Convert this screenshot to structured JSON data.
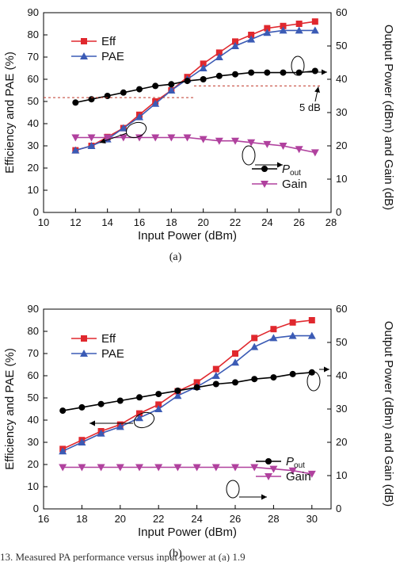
{
  "chart_data": [
    {
      "type": "line",
      "subcaption": "(a)",
      "xlabel": "Input Power (dBm)",
      "ylabel_left": "Efficiency and PAE (%)",
      "ylabel_right": "Output Power (dBm) and Gain (dB)",
      "xlim": [
        10,
        28
      ],
      "ylim_left": [
        0,
        90
      ],
      "ylim_right": [
        0,
        60
      ],
      "xticks": [
        "10",
        "12",
        "14",
        "16",
        "18",
        "20",
        "22",
        "24",
        "26",
        "28"
      ],
      "yticks_left": [
        "0",
        "10",
        "20",
        "30",
        "40",
        "50",
        "60",
        "70",
        "80",
        "90"
      ],
      "yticks_right": [
        "0",
        "10",
        "20",
        "30",
        "40",
        "50",
        "60"
      ],
      "annotation": "5 dB",
      "series": [
        {
          "name": "Eff",
          "axis": "left",
          "color": "#e0282e",
          "marker": "square",
          "x": [
            12,
            13,
            14,
            15,
            16,
            17,
            18,
            19,
            20,
            21,
            22,
            23,
            24,
            25,
            26,
            27
          ],
          "y": [
            28,
            30,
            34,
            38,
            44,
            50,
            55,
            61,
            67,
            72,
            77,
            80,
            83,
            84,
            85,
            86
          ]
        },
        {
          "name": "PAE",
          "axis": "left",
          "color": "#3b5bb5",
          "marker": "triangle-up",
          "x": [
            12,
            13,
            14,
            15,
            16,
            17,
            18,
            19,
            20,
            21,
            22,
            23,
            24,
            25,
            26,
            27
          ],
          "y": [
            28,
            30,
            33,
            38,
            43,
            49,
            55,
            60,
            65,
            70,
            75,
            78,
            81,
            82,
            82,
            82
          ]
        },
        {
          "name": "P_out",
          "label_main": "P",
          "label_sub": "out",
          "axis": "right",
          "color": "#000000",
          "marker": "circle",
          "x": [
            12,
            13,
            14,
            15,
            16,
            17,
            18,
            19,
            20,
            21,
            22,
            23,
            24,
            25,
            26,
            27
          ],
          "y": [
            33,
            34,
            35,
            36,
            37,
            38,
            38.5,
            39.5,
            40,
            41,
            41.5,
            42,
            42,
            42,
            42,
            42.5
          ]
        },
        {
          "name": "Gain",
          "axis": "right",
          "color": "#b0419e",
          "marker": "triangle-down",
          "x": [
            12,
            13,
            14,
            15,
            16,
            17,
            18,
            19,
            20,
            21,
            22,
            23,
            24,
            25,
            26,
            27
          ],
          "y": [
            22.5,
            22.5,
            22.5,
            22.5,
            22.5,
            22.5,
            22.5,
            22.5,
            22,
            21.5,
            21.5,
            21,
            20.5,
            20,
            19,
            18
          ]
        }
      ]
    },
    {
      "type": "line",
      "subcaption": "(b)",
      "xlabel": "Input Power (dBm)",
      "ylabel_left": "Efficiency and PAE (%)",
      "ylabel_right": "Output Power (dBm) and Gain (dB)",
      "xlim": [
        16,
        31
      ],
      "ylim_left": [
        0,
        90
      ],
      "ylim_right": [
        0,
        60
      ],
      "xticks": [
        "16",
        "18",
        "20",
        "22",
        "24",
        "26",
        "28",
        "30"
      ],
      "yticks_left": [
        "0",
        "10",
        "20",
        "30",
        "40",
        "50",
        "60",
        "70",
        "80",
        "90"
      ],
      "yticks_right": [
        "0",
        "10",
        "20",
        "30",
        "40",
        "50",
        "60"
      ],
      "series": [
        {
          "name": "Eff",
          "axis": "left",
          "color": "#e0282e",
          "marker": "square",
          "x": [
            17,
            18,
            19,
            20,
            21,
            22,
            23,
            24,
            25,
            26,
            27,
            28,
            29,
            30
          ],
          "y": [
            27,
            31,
            35,
            38,
            43,
            47,
            53,
            57,
            63,
            70,
            77,
            81,
            84,
            85
          ]
        },
        {
          "name": "PAE",
          "axis": "left",
          "color": "#3b5bb5",
          "marker": "triangle-up",
          "x": [
            17,
            18,
            19,
            20,
            21,
            22,
            23,
            24,
            25,
            26,
            27,
            28,
            29,
            30
          ],
          "y": [
            26,
            30,
            34,
            37,
            41,
            45,
            51,
            55,
            60,
            66,
            73,
            77,
            78,
            78
          ]
        },
        {
          "name": "P_out",
          "label_main": "P",
          "label_sub": "out",
          "axis": "right",
          "color": "#000000",
          "marker": "circle",
          "x": [
            17,
            18,
            19,
            20,
            21,
            22,
            23,
            24,
            25,
            26,
            27,
            28,
            29,
            30
          ],
          "y": [
            29.5,
            30.5,
            31.5,
            32.5,
            33.5,
            34.5,
            35.5,
            36.5,
            37.5,
            38,
            39,
            39.5,
            40.5,
            41
          ]
        },
        {
          "name": "Gain",
          "axis": "right",
          "color": "#b0419e",
          "marker": "triangle-down",
          "x": [
            17,
            18,
            19,
            20,
            21,
            22,
            23,
            24,
            25,
            26,
            27,
            28,
            29,
            30
          ],
          "y": [
            12.5,
            12.5,
            12.5,
            12.5,
            12.5,
            12.5,
            12.5,
            12.5,
            12.5,
            12.5,
            12.5,
            12,
            11.5,
            10.5
          ]
        }
      ]
    }
  ],
  "caption": "13.  Measured  PA  performance  versus  input  power  at  (a)  1.9"
}
